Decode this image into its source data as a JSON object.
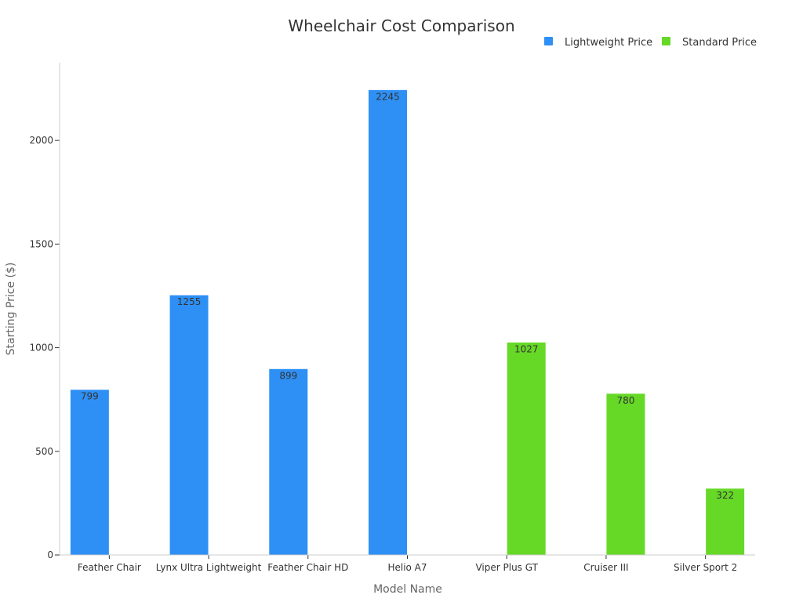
{
  "chart_data": {
    "type": "bar",
    "title": "Wheelchair Cost Comparison",
    "xlabel": "Model Name",
    "ylabel": "Starting Price ($)",
    "ylim": [
      0,
      2375
    ],
    "yticks": [
      0,
      500,
      1000,
      1500,
      2000
    ],
    "grid": false,
    "legend_position": "top-right",
    "categories": [
      "Feather Chair",
      "Lynx Ultra Lightweight",
      "Feather Chair HD",
      "Helio A7",
      "Viper Plus GT",
      "Cruiser III",
      "Silver Sport 2"
    ],
    "series": [
      {
        "name": "Lightweight Price",
        "color": "#2e90f5",
        "values": [
          799,
          1255,
          899,
          2245,
          null,
          null,
          null
        ]
      },
      {
        "name": "Standard Price",
        "color": "#66d926",
        "values": [
          null,
          null,
          null,
          null,
          1027,
          780,
          322
        ]
      }
    ]
  }
}
